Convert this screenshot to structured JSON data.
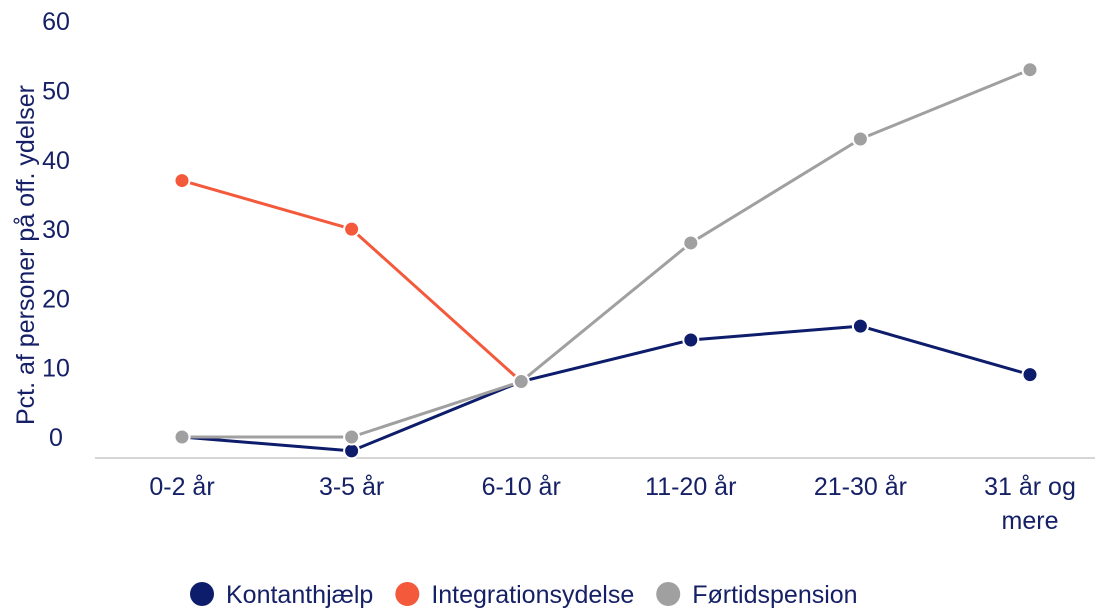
{
  "chart_data": {
    "type": "line",
    "ylabel": "Pct. af personer på off. ydelser",
    "xlabel": "",
    "ylim": [
      0,
      60
    ],
    "yticks": [
      0,
      10,
      20,
      30,
      40,
      50,
      60
    ],
    "grid": false,
    "legend_position": "bottom-center",
    "categories": [
      [
        "0-2 år"
      ],
      [
        "3-5 år"
      ],
      [
        "6-10 år"
      ],
      [
        "11-20 år"
      ],
      [
        "21-30 år"
      ],
      [
        "31 år og",
        "mere"
      ]
    ],
    "series": [
      {
        "name": "Kontanthjælp",
        "color": "#0d1c6b",
        "values": [
          0,
          -2,
          8,
          14,
          16,
          9
        ]
      },
      {
        "name": "Integrationsydelse",
        "color": "#f4593b",
        "values": [
          37,
          30,
          8,
          null,
          null,
          null
        ]
      },
      {
        "name": "Førtidspension",
        "color": "#a0a0a0",
        "values": [
          0,
          0,
          8,
          28,
          43,
          53
        ]
      }
    ]
  },
  "colors": {
    "text": "#152066",
    "axis": "#c8c8c8"
  }
}
